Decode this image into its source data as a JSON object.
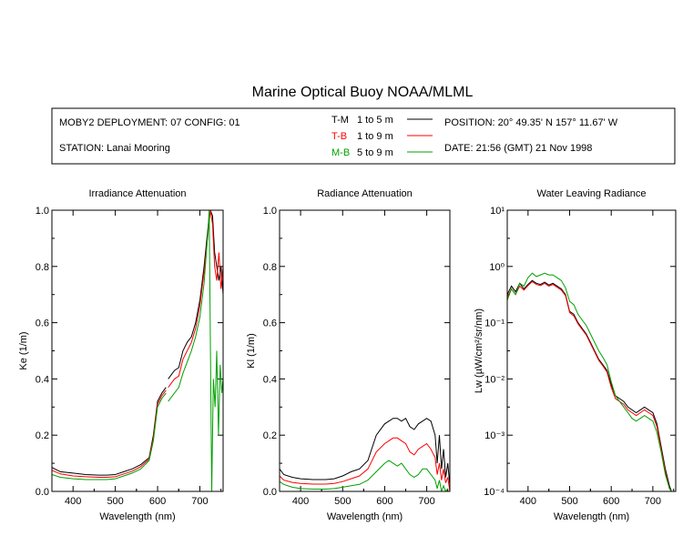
{
  "title": "Marine Optical Buoy NOAA/MLML",
  "header": {
    "deployment": "MOBY2 DEPLOYMENT: 07 CONFIG: 01",
    "station": "STATION: Lanai Mooring",
    "position": "POSITION: 20° 49.35' N   157° 11.67' W",
    "date": "DATE: 21:56 (GMT) 21 Nov 1998",
    "legend": [
      {
        "code": "T-M",
        "range": "1 to 5  m",
        "color": "#000000"
      },
      {
        "code": "T-B",
        "range": "1 to 9  m",
        "color": "#ff0000"
      },
      {
        "code": "M-B",
        "range": "5 to 9  m",
        "color": "#00a000"
      }
    ]
  },
  "chart_data": [
    {
      "type": "line",
      "title": "Irradiance Attenuation",
      "xlabel": "Wavelength (nm)",
      "ylabel": "Ke  (1/m)",
      "xlim": [
        350,
        755
      ],
      "ylim": [
        0,
        1.0
      ],
      "x_ticks": [
        400,
        500,
        600,
        700
      ],
      "y_ticks": [
        "0.0",
        "0.2",
        "0.4",
        "0.6",
        "0.8",
        "1.0"
      ],
      "y_tick_values": [
        0,
        0.2,
        0.4,
        0.6,
        0.8,
        1.0
      ],
      "series": [
        {
          "color": "#000000",
          "segments": [
            {
              "x": [
                350,
                370,
                400,
                430,
                460,
                480,
                500,
                520,
                540,
                560,
                580,
                590,
                600,
                610,
                620
              ],
              "y": [
                0.085,
                0.07,
                0.065,
                0.06,
                0.058,
                0.058,
                0.06,
                0.07,
                0.08,
                0.095,
                0.12,
                0.2,
                0.32,
                0.35,
                0.37
              ]
            },
            {
              "x": [
                625,
                640,
                650,
                660,
                670,
                680,
                690,
                700,
                710,
                720,
                725,
                730,
                735,
                740,
                745,
                750,
                755
              ],
              "y": [
                0.4,
                0.43,
                0.44,
                0.5,
                0.53,
                0.55,
                0.6,
                0.68,
                0.8,
                0.95,
                1.0,
                0.98,
                0.85,
                0.8,
                0.75,
                0.8,
                0.7
              ]
            }
          ]
        },
        {
          "color": "#ff0000",
          "segments": [
            {
              "x": [
                350,
                370,
                400,
                430,
                460,
                480,
                500,
                520,
                540,
                560,
                580,
                590,
                600,
                610,
                620
              ],
              "y": [
                0.075,
                0.062,
                0.055,
                0.052,
                0.05,
                0.05,
                0.052,
                0.062,
                0.072,
                0.088,
                0.115,
                0.19,
                0.31,
                0.34,
                0.36
              ]
            },
            {
              "x": [
                625,
                640,
                650,
                660,
                670,
                680,
                690,
                700,
                710,
                720,
                725,
                730,
                735,
                740,
                745,
                750,
                755
              ],
              "y": [
                0.37,
                0.4,
                0.41,
                0.47,
                0.5,
                0.53,
                0.58,
                0.66,
                0.78,
                0.93,
                1.0,
                0.95,
                0.8,
                0.75,
                0.85,
                0.72,
                0.8
              ]
            }
          ]
        },
        {
          "color": "#00a000",
          "segments": [
            {
              "x": [
                350,
                370,
                400,
                430,
                460,
                480,
                500,
                520,
                540,
                560,
                580,
                590,
                600,
                610,
                620
              ],
              "y": [
                0.06,
                0.05,
                0.045,
                0.042,
                0.042,
                0.042,
                0.045,
                0.055,
                0.065,
                0.08,
                0.11,
                0.18,
                0.3,
                0.33,
                0.35
              ]
            },
            {
              "x": [
                625,
                640,
                650,
                660,
                670,
                680,
                690,
                700,
                710,
                718,
                722,
                725,
                728,
                732,
                736,
                740,
                744,
                748,
                752,
                755
              ],
              "y": [
                0.32,
                0.35,
                0.37,
                0.42,
                0.46,
                0.5,
                0.55,
                0.62,
                0.74,
                0.9,
                1.0,
                0.5,
                0.0,
                0.4,
                0.3,
                0.5,
                0.2,
                0.45,
                0.35,
                0.4
              ]
            }
          ]
        }
      ]
    },
    {
      "type": "line",
      "title": "Radiance Attenuation",
      "xlabel": "Wavelength (nm)",
      "ylabel": "Kl  (1/m)",
      "xlim": [
        350,
        755
      ],
      "ylim": [
        0,
        1.0
      ],
      "x_ticks": [
        400,
        500,
        600,
        700
      ],
      "y_ticks": [
        "0.0",
        "0.2",
        "0.4",
        "0.6",
        "0.8",
        "1.0"
      ],
      "y_tick_values": [
        0,
        0.2,
        0.4,
        0.6,
        0.8,
        1.0
      ],
      "series": [
        {
          "color": "#000000",
          "segments": [
            {
              "x": [
                350,
                360,
                380,
                400,
                430,
                460,
                480,
                500,
                520,
                540,
                560,
                580,
                600,
                610,
                620,
                630,
                640,
                650,
                660,
                670,
                680,
                690,
                700,
                710,
                720,
                725,
                730,
                735,
                740,
                745,
                750,
                755
              ],
              "y": [
                0.08,
                0.06,
                0.05,
                0.045,
                0.042,
                0.042,
                0.045,
                0.055,
                0.07,
                0.08,
                0.11,
                0.2,
                0.24,
                0.25,
                0.26,
                0.26,
                0.25,
                0.26,
                0.23,
                0.22,
                0.24,
                0.25,
                0.26,
                0.25,
                0.2,
                0.1,
                0.2,
                0.08,
                0.15,
                0.05,
                0.1,
                0.02
              ]
            }
          ]
        },
        {
          "color": "#ff0000",
          "segments": [
            {
              "x": [
                350,
                360,
                380,
                400,
                430,
                460,
                480,
                500,
                520,
                540,
                560,
                580,
                600,
                610,
                620,
                630,
                640,
                650,
                660,
                670,
                680,
                690,
                700,
                710,
                720,
                725,
                730,
                735,
                740,
                745,
                750,
                755
              ],
              "y": [
                0.055,
                0.04,
                0.032,
                0.028,
                0.026,
                0.026,
                0.028,
                0.035,
                0.045,
                0.055,
                0.08,
                0.14,
                0.17,
                0.18,
                0.19,
                0.19,
                0.18,
                0.17,
                0.14,
                0.13,
                0.15,
                0.16,
                0.17,
                0.15,
                0.12,
                0.06,
                0.1,
                0.04,
                0.08,
                0.03,
                0.05,
                0.0
              ]
            }
          ]
        },
        {
          "color": "#00a000",
          "segments": [
            {
              "x": [
                350,
                360,
                380,
                400,
                430,
                460,
                480,
                500,
                520,
                540,
                560,
                580,
                600,
                610,
                620,
                630,
                640,
                650,
                660,
                670,
                680,
                690,
                700,
                710,
                720,
                725,
                730,
                735,
                740,
                745,
                750
              ],
              "y": [
                0.035,
                0.025,
                0.015,
                0.01,
                0.008,
                0.008,
                0.01,
                0.015,
                0.02,
                0.025,
                0.04,
                0.07,
                0.1,
                0.11,
                0.1,
                0.09,
                0.1,
                0.08,
                0.06,
                0.05,
                0.06,
                0.08,
                0.08,
                0.06,
                0.04,
                0.01,
                0.04,
                0.0,
                0.02,
                0.0,
                0.01
              ]
            }
          ]
        }
      ]
    },
    {
      "type": "line",
      "title": "Water Leaving Radiance",
      "xlabel": "Wavelength (nm)",
      "ylabel": "Lw  (µW/cm²/sr/nm)",
      "xlim": [
        350,
        755
      ],
      "ylim": [
        -4,
        1
      ],
      "yscale": "log",
      "x_ticks": [
        400,
        500,
        600,
        700
      ],
      "y_ticks": [
        "10⁻⁴",
        "10⁻³",
        "10⁻²",
        "10⁻¹",
        "10⁰",
        "10¹"
      ],
      "y_tick_values": [
        -4,
        -3,
        -2,
        -1,
        0,
        1
      ],
      "series": [
        {
          "color": "#000000",
          "segments": [
            {
              "x": [
                350,
                360,
                370,
                380,
                390,
                400,
                410,
                420,
                430,
                440,
                450,
                460,
                470,
                480,
                490,
                500,
                510,
                520,
                530,
                540,
                550,
                560,
                570,
                580,
                590,
                600,
                610,
                620,
                630,
                640,
                650,
                660,
                670,
                680,
                690,
                700,
                710,
                720,
                730,
                740,
                745
              ],
              "y": [
                -0.5,
                -0.35,
                -0.45,
                -0.3,
                -0.4,
                -0.32,
                -0.25,
                -0.3,
                -0.32,
                -0.28,
                -0.33,
                -0.3,
                -0.35,
                -0.4,
                -0.5,
                -0.8,
                -0.85,
                -1.0,
                -1.1,
                -1.2,
                -1.35,
                -1.5,
                -1.65,
                -1.75,
                -1.85,
                -2.1,
                -2.3,
                -2.35,
                -2.4,
                -2.5,
                -2.55,
                -2.6,
                -2.55,
                -2.5,
                -2.55,
                -2.6,
                -2.8,
                -3.2,
                -3.6,
                -3.9,
                -4.0
              ]
            }
          ]
        },
        {
          "color": "#ff0000",
          "segments": [
            {
              "x": [
                350,
                360,
                370,
                380,
                390,
                400,
                410,
                420,
                430,
                440,
                450,
                460,
                470,
                480,
                490,
                500,
                510,
                520,
                530,
                540,
                550,
                560,
                570,
                580,
                590,
                600,
                610,
                620,
                630,
                640,
                650,
                660,
                670,
                680,
                690,
                700,
                710,
                720,
                730,
                740,
                745
              ],
              "y": [
                -0.55,
                -0.4,
                -0.5,
                -0.35,
                -0.42,
                -0.34,
                -0.27,
                -0.32,
                -0.34,
                -0.3,
                -0.35,
                -0.32,
                -0.37,
                -0.42,
                -0.52,
                -0.82,
                -0.88,
                -1.02,
                -1.12,
                -1.22,
                -1.37,
                -1.52,
                -1.67,
                -1.77,
                -1.88,
                -2.15,
                -2.35,
                -2.4,
                -2.45,
                -2.55,
                -2.6,
                -2.65,
                -2.6,
                -2.55,
                -2.6,
                -2.65,
                -2.85,
                -3.25,
                -3.65,
                -3.95,
                -4.0
              ]
            }
          ]
        },
        {
          "color": "#00a000",
          "segments": [
            {
              "x": [
                350,
                360,
                370,
                380,
                390,
                400,
                410,
                420,
                430,
                440,
                450,
                460,
                470,
                480,
                490,
                500,
                510,
                520,
                530,
                540,
                550,
                560,
                570,
                580,
                590,
                600,
                610,
                620,
                630,
                640,
                650,
                660,
                670,
                680,
                690,
                700,
                710,
                720,
                730,
                740,
                745
              ],
              "y": [
                -0.6,
                -0.4,
                -0.5,
                -0.3,
                -0.35,
                -0.2,
                -0.12,
                -0.18,
                -0.15,
                -0.12,
                -0.15,
                -0.15,
                -0.2,
                -0.25,
                -0.38,
                -0.62,
                -0.68,
                -0.85,
                -0.95,
                -1.05,
                -1.2,
                -1.35,
                -1.5,
                -1.62,
                -1.75,
                -2.05,
                -2.3,
                -2.4,
                -2.5,
                -2.6,
                -2.7,
                -2.75,
                -2.7,
                -2.65,
                -2.7,
                -2.75,
                -2.95,
                -3.3,
                -3.7,
                -3.95,
                -4.0
              ]
            }
          ]
        }
      ]
    }
  ]
}
